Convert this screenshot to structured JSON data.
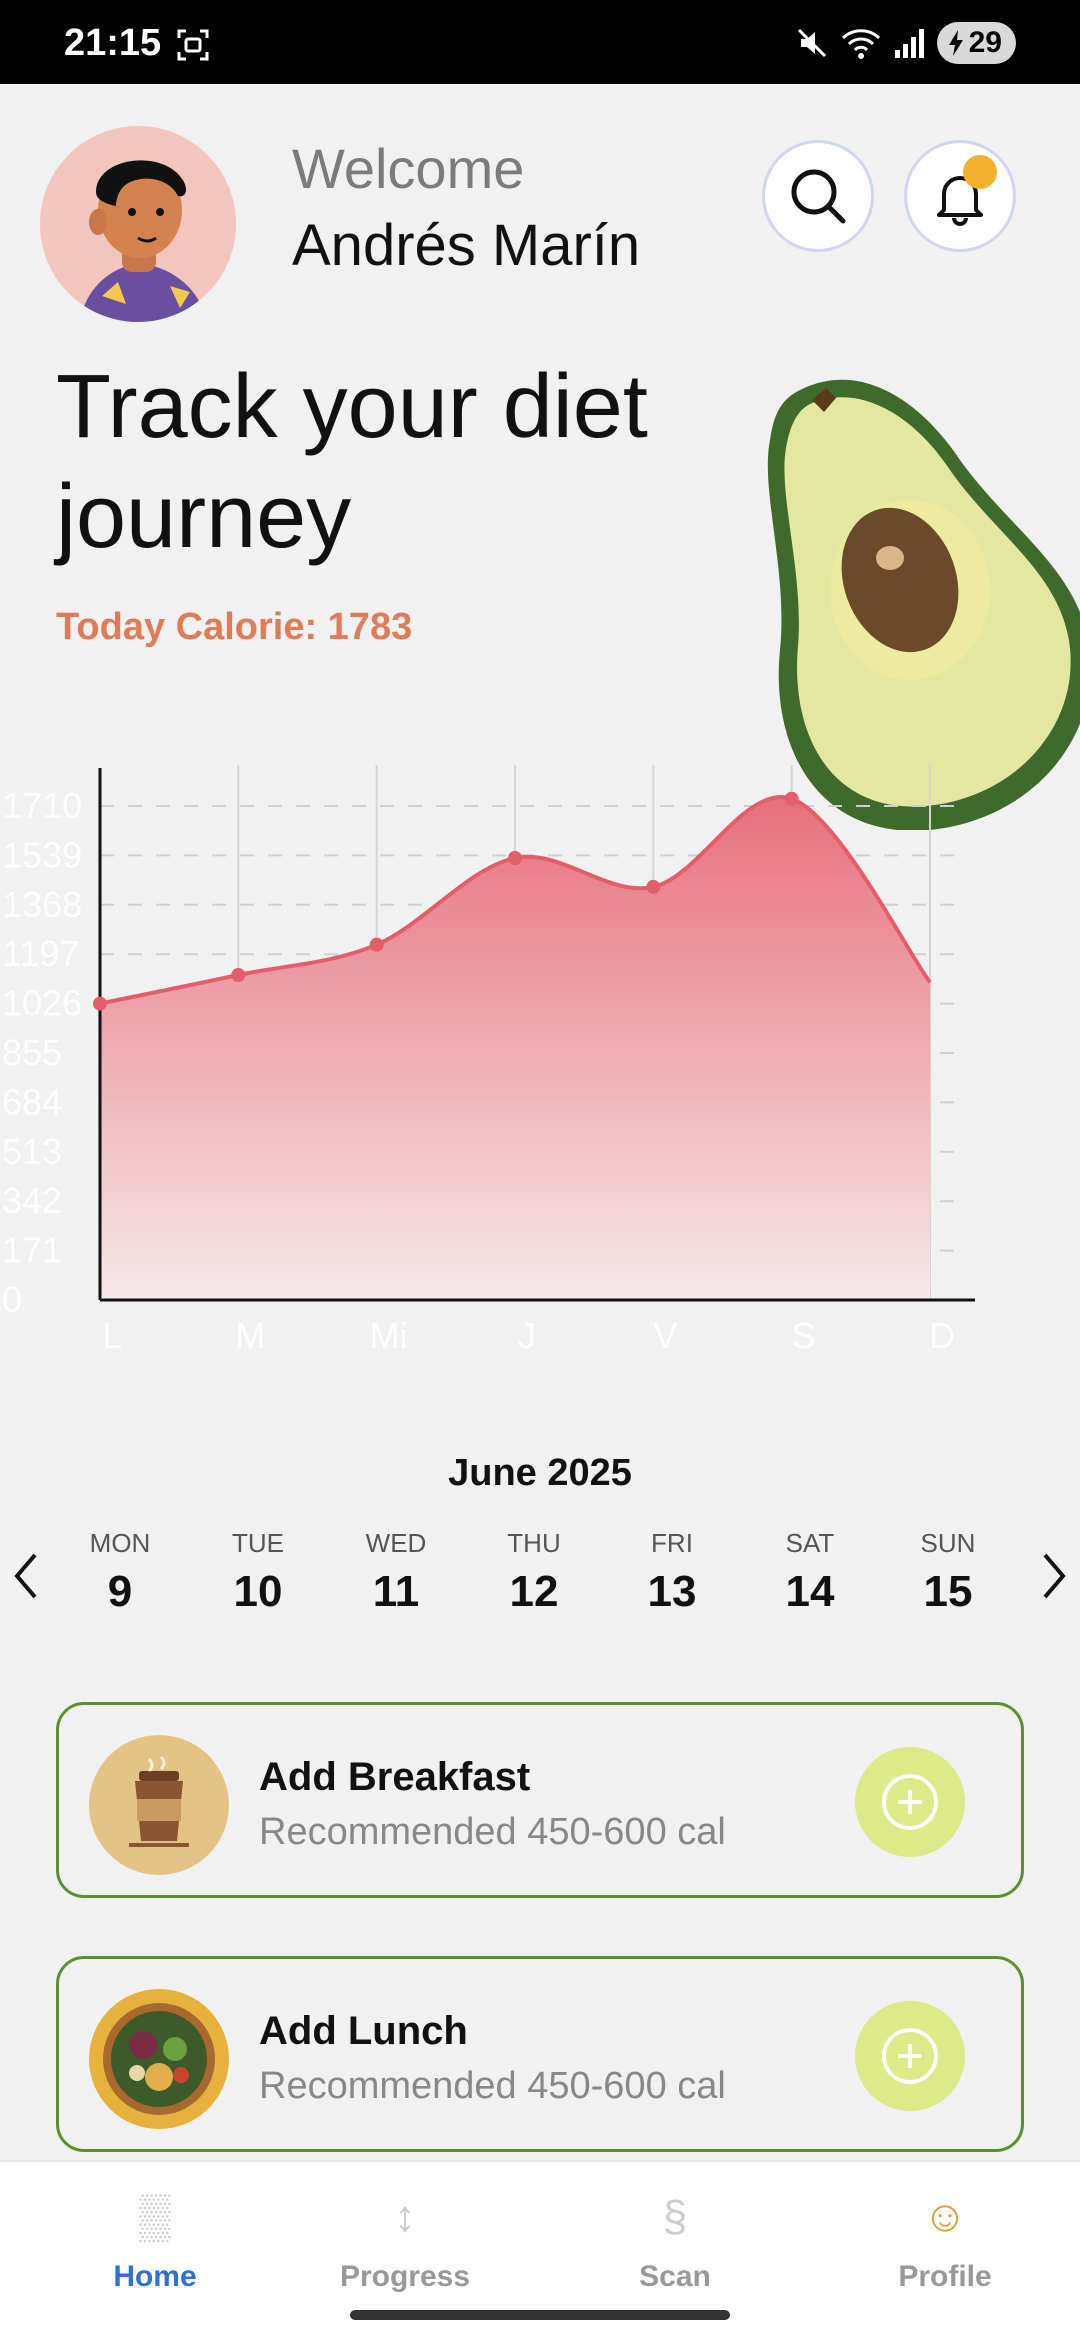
{
  "status_bar": {
    "time": "21:15",
    "battery": "29"
  },
  "header": {
    "welcome": "Welcome",
    "user_name": "Andrés Marín"
  },
  "hero": {
    "headline": "Track your diet journey",
    "today_calorie": "Today Calorie: 1783"
  },
  "chart_data": {
    "type": "area",
    "categories": [
      "L",
      "M",
      "Mi",
      "J",
      "V",
      "S",
      "D"
    ],
    "values": [
      1026,
      1125,
      1230,
      1530,
      1430,
      1735,
      1100
    ],
    "yticks": [
      "0",
      "171",
      "342",
      "513",
      "684",
      "855",
      "1026",
      "1197",
      "1368",
      "1539",
      "1710"
    ],
    "ylim": [
      0,
      1800
    ],
    "grid": true,
    "colors": {
      "line": "#e35d6a",
      "fill_top": "#e8707c",
      "fill_bottom": "#f5e9ea",
      "tick": "#ffffff"
    }
  },
  "calendar": {
    "month": "June 2025",
    "days": [
      {
        "name": "MON",
        "num": "9"
      },
      {
        "name": "TUE",
        "num": "10"
      },
      {
        "name": "WED",
        "num": "11"
      },
      {
        "name": "THU",
        "num": "12"
      },
      {
        "name": "FRI",
        "num": "13"
      },
      {
        "name": "SAT",
        "num": "14"
      },
      {
        "name": "SUN",
        "num": "15"
      }
    ]
  },
  "meals": [
    {
      "title": "Add Breakfast",
      "subtitle": "Recommended 450-600 cal",
      "icon": "coffee-cup-icon"
    },
    {
      "title": "Add Lunch",
      "subtitle": "Recommended 450-600 cal",
      "icon": "salad-bowl-icon"
    }
  ],
  "nav": {
    "items": [
      {
        "label": "Home",
        "icon": "▒",
        "active": true
      },
      {
        "label": "Progress",
        "icon": "↕",
        "active": false
      },
      {
        "label": "Scan",
        "icon": "§",
        "active": false
      },
      {
        "label": "Profile",
        "icon": "☺",
        "active": false
      }
    ]
  },
  "colors": {
    "accent": "#2f6fd6",
    "calorie": "#e07b57",
    "card_border": "#5e8f2f",
    "add_button": "#dcea8a"
  }
}
